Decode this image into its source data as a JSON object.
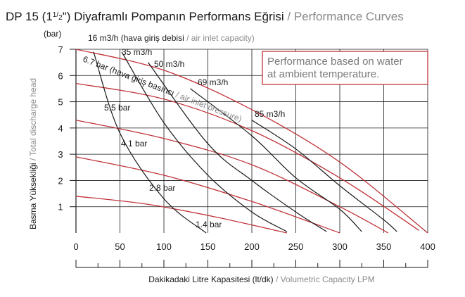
{
  "title": {
    "main": "DP 15 (1",
    "frac_num": "1",
    "frac_den": "2",
    "after_frac": "\") Diyaframlı Pompanın Performans Eğrisi",
    "sep": " / ",
    "english": "Performance Curves"
  },
  "note": {
    "line1": "Performance based on water",
    "line2": "at ambient temperature.",
    "border_color": "#c0343a",
    "text_color": "#7a7a7a"
  },
  "colors": {
    "pressure_curves": "#c0343a",
    "flow_curves": "#1a1a1a",
    "grid": "#1a1a1a",
    "secondary_text": "#8a8a8a"
  },
  "chart_data": {
    "type": "line",
    "xlabel_tr": "Dakikadaki Litre Kapasitesi (lt/dk)",
    "xlabel_sep": " / ",
    "xlabel_en": "Volumetric Capacity LPM",
    "ylabel_tr": "Basma Yüksekliği",
    "ylabel_sep": " / ",
    "ylabel_en": "Total discharge head",
    "yunit": "(bar)",
    "xlim": [
      0,
      400
    ],
    "ylim": [
      0,
      7
    ],
    "x_ticks": [
      0,
      50,
      100,
      150,
      200,
      250,
      300,
      350,
      400
    ],
    "y_ticks": [
      1,
      2,
      3,
      4,
      5,
      6,
      7
    ],
    "grid": true,
    "air_inlet_label": {
      "prefix": "16 m3/h (hava giriş debisi",
      "sep": " / ",
      "english": "air inlet capacity)"
    },
    "air_pressure_label": {
      "prefix": "6.7 bar (hava giriş basıncı",
      "sep": " / ",
      "english": "air inlet pressure)"
    },
    "flow_labels": [
      "35 m3/h",
      "50 m3/h",
      "69 m3/h",
      "85 m3/h"
    ],
    "pressure_labels": [
      "5.5 bar",
      "4.1 bar",
      "2.8 bar",
      "1.4 bar"
    ],
    "pressure_series": [
      {
        "name": "6.7 bar",
        "x": [
          0,
          100,
          200,
          300,
          400
        ],
        "y": [
          7.0,
          6.2,
          4.7,
          2.7,
          0.0
        ]
      },
      {
        "name": "5.5 bar",
        "x": [
          0,
          100,
          200,
          300,
          390
        ],
        "y": [
          5.7,
          5.1,
          3.9,
          2.1,
          0.1
        ]
      },
      {
        "name": "4.1 bar",
        "x": [
          0,
          100,
          200,
          300,
          355
        ],
        "y": [
          4.3,
          3.6,
          2.6,
          1.0,
          0.0
        ]
      },
      {
        "name": "2.8 bar",
        "x": [
          0,
          100,
          200,
          300
        ],
        "y": [
          2.9,
          2.2,
          1.2,
          0.0
        ]
      },
      {
        "name": "1.4 bar",
        "x": [
          0,
          80,
          160,
          240
        ],
        "y": [
          1.4,
          1.1,
          0.6,
          0.0
        ]
      }
    ],
    "flow_series": [
      {
        "name": "16 m3/h",
        "x": [
          20,
          50,
          100,
          148
        ],
        "y": [
          6.9,
          3.8,
          1.3,
          0.0
        ]
      },
      {
        "name": "35 m3/h",
        "x": [
          52,
          100,
          150,
          200,
          240
        ],
        "y": [
          6.9,
          4.2,
          2.2,
          0.8,
          0.05
        ]
      },
      {
        "name": "50 m3/h",
        "x": [
          82,
          150,
          200,
          250,
          285
        ],
        "y": [
          6.5,
          3.4,
          2.0,
          0.8,
          0.05
        ]
      },
      {
        "name": "69 m3/h",
        "x": [
          130,
          200,
          250,
          300,
          325
        ],
        "y": [
          5.5,
          3.7,
          2.1,
          0.9,
          0.05
        ]
      },
      {
        "name": "85 m3/h",
        "x": [
          200,
          250,
          300,
          350,
          365
        ],
        "y": [
          4.3,
          3.2,
          1.8,
          0.5,
          0.05
        ]
      }
    ]
  }
}
